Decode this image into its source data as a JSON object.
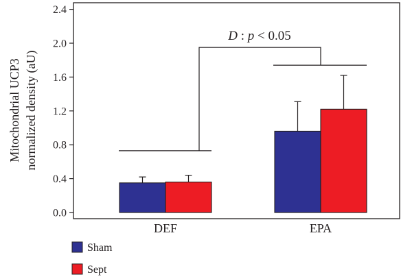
{
  "chart_data": {
    "type": "bar",
    "title": "",
    "xlabel": "",
    "ylabel": [
      "Mitochondrial UCP3",
      "normalized density (aU)"
    ],
    "ylim": [
      0,
      2.6
    ],
    "yticks": [
      0.0,
      0.4,
      0.8,
      1.2,
      1.6,
      2.0,
      2.4
    ],
    "ytick_labels": [
      "0.0",
      "0.4",
      "0.8",
      "1.2",
      "1.6",
      "2.0",
      "2.4"
    ],
    "categories": [
      "DEF",
      "EPA"
    ],
    "series": [
      {
        "name": "Sham",
        "color": "#2e3192",
        "values": [
          0.35,
          0.96
        ],
        "errors": [
          0.07,
          0.35
        ]
      },
      {
        "name": "Sept",
        "color": "#ed1c24",
        "values": [
          0.36,
          1.22
        ],
        "errors": [
          0.08,
          0.4
        ]
      }
    ],
    "significance": {
      "label_prefix": "D",
      "label_rest": " : ",
      "label_p": "p",
      "label_value": " < 0.05",
      "between": [
        "DEF",
        "EPA"
      ],
      "group_line_levels": [
        0.73,
        1.74
      ],
      "top_level": 1.95
    },
    "legend": {
      "placement": "bottom-left"
    },
    "grid": false
  }
}
